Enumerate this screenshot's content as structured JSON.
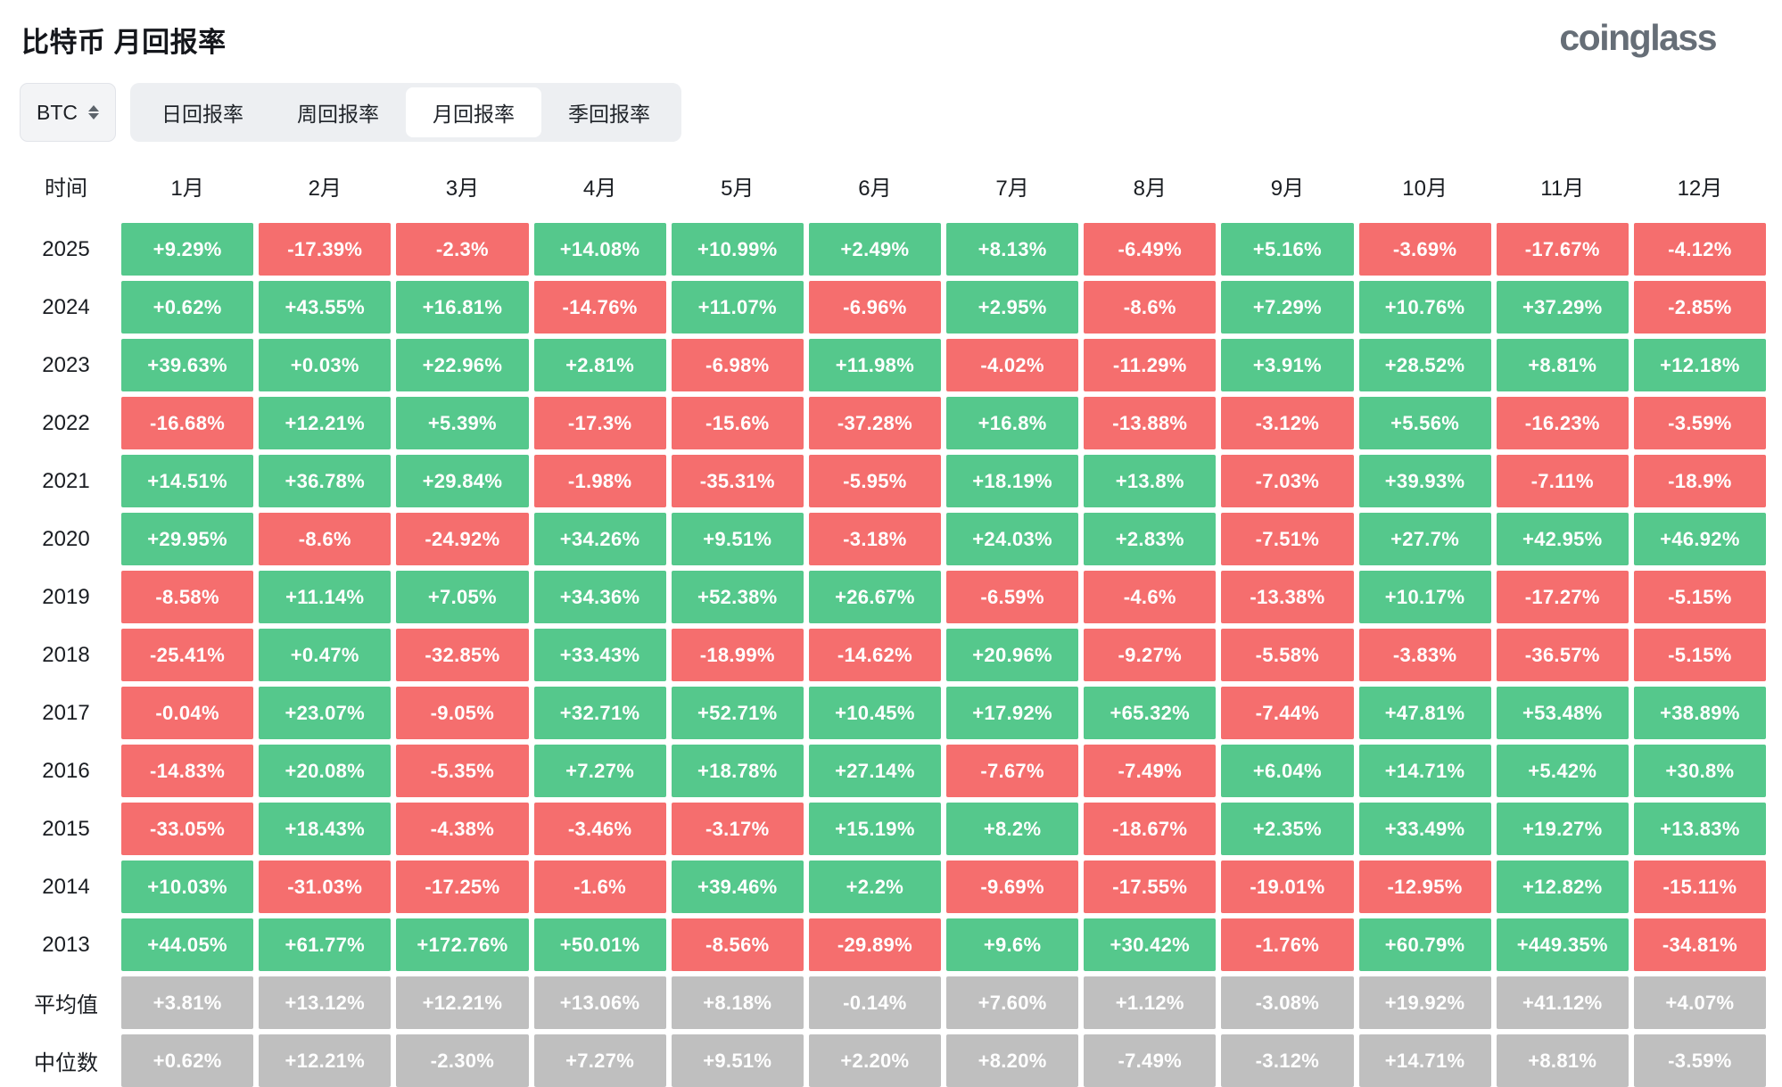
{
  "header": {
    "title": "比特币 月回报率",
    "logo": "coinglass"
  },
  "controls": {
    "symbol_select": {
      "value": "BTC",
      "icon": "sort-updown-icon"
    },
    "tabs": [
      {
        "label": "日回报率",
        "active": false
      },
      {
        "label": "周回报率",
        "active": false
      },
      {
        "label": "月回报率",
        "active": true
      },
      {
        "label": "季回报率",
        "active": false
      }
    ]
  },
  "colors": {
    "positive": "#55C88C",
    "negative": "#F56E6E",
    "neutral": "#BFBFBF"
  },
  "chart_data": {
    "type": "heatmap",
    "title": "比特币 月回报率",
    "columns": [
      "时间",
      "1月",
      "2月",
      "3月",
      "4月",
      "5月",
      "6月",
      "7月",
      "8月",
      "9月",
      "10月",
      "11月",
      "12月"
    ],
    "rows": [
      {
        "label": "2025",
        "type": "year",
        "values": [
          "+9.29%",
          "-17.39%",
          "-2.3%",
          "+14.08%",
          "+10.99%",
          "+2.49%",
          "+8.13%",
          "-6.49%",
          "+5.16%",
          "-3.69%",
          "-17.67%",
          "-4.12%"
        ]
      },
      {
        "label": "2024",
        "type": "year",
        "values": [
          "+0.62%",
          "+43.55%",
          "+16.81%",
          "-14.76%",
          "+11.07%",
          "-6.96%",
          "+2.95%",
          "-8.6%",
          "+7.29%",
          "+10.76%",
          "+37.29%",
          "-2.85%"
        ]
      },
      {
        "label": "2023",
        "type": "year",
        "values": [
          "+39.63%",
          "+0.03%",
          "+22.96%",
          "+2.81%",
          "-6.98%",
          "+11.98%",
          "-4.02%",
          "-11.29%",
          "+3.91%",
          "+28.52%",
          "+8.81%",
          "+12.18%"
        ]
      },
      {
        "label": "2022",
        "type": "year",
        "values": [
          "-16.68%",
          "+12.21%",
          "+5.39%",
          "-17.3%",
          "-15.6%",
          "-37.28%",
          "+16.8%",
          "-13.88%",
          "-3.12%",
          "+5.56%",
          "-16.23%",
          "-3.59%"
        ]
      },
      {
        "label": "2021",
        "type": "year",
        "values": [
          "+14.51%",
          "+36.78%",
          "+29.84%",
          "-1.98%",
          "-35.31%",
          "-5.95%",
          "+18.19%",
          "+13.8%",
          "-7.03%",
          "+39.93%",
          "-7.11%",
          "-18.9%"
        ]
      },
      {
        "label": "2020",
        "type": "year",
        "values": [
          "+29.95%",
          "-8.6%",
          "-24.92%",
          "+34.26%",
          "+9.51%",
          "-3.18%",
          "+24.03%",
          "+2.83%",
          "-7.51%",
          "+27.7%",
          "+42.95%",
          "+46.92%"
        ]
      },
      {
        "label": "2019",
        "type": "year",
        "values": [
          "-8.58%",
          "+11.14%",
          "+7.05%",
          "+34.36%",
          "+52.38%",
          "+26.67%",
          "-6.59%",
          "-4.6%",
          "-13.38%",
          "+10.17%",
          "-17.27%",
          "-5.15%"
        ]
      },
      {
        "label": "2018",
        "type": "year",
        "values": [
          "-25.41%",
          "+0.47%",
          "-32.85%",
          "+33.43%",
          "-18.99%",
          "-14.62%",
          "+20.96%",
          "-9.27%",
          "-5.58%",
          "-3.83%",
          "-36.57%",
          "-5.15%"
        ]
      },
      {
        "label": "2017",
        "type": "year",
        "values": [
          "-0.04%",
          "+23.07%",
          "-9.05%",
          "+32.71%",
          "+52.71%",
          "+10.45%",
          "+17.92%",
          "+65.32%",
          "-7.44%",
          "+47.81%",
          "+53.48%",
          "+38.89%"
        ]
      },
      {
        "label": "2016",
        "type": "year",
        "values": [
          "-14.83%",
          "+20.08%",
          "-5.35%",
          "+7.27%",
          "+18.78%",
          "+27.14%",
          "-7.67%",
          "-7.49%",
          "+6.04%",
          "+14.71%",
          "+5.42%",
          "+30.8%"
        ]
      },
      {
        "label": "2015",
        "type": "year",
        "values": [
          "-33.05%",
          "+18.43%",
          "-4.38%",
          "-3.46%",
          "-3.17%",
          "+15.19%",
          "+8.2%",
          "-18.67%",
          "+2.35%",
          "+33.49%",
          "+19.27%",
          "+13.83%"
        ]
      },
      {
        "label": "2014",
        "type": "year",
        "values": [
          "+10.03%",
          "-31.03%",
          "-17.25%",
          "-1.6%",
          "+39.46%",
          "+2.2%",
          "-9.69%",
          "-17.55%",
          "-19.01%",
          "-12.95%",
          "+12.82%",
          "-15.11%"
        ]
      },
      {
        "label": "2013",
        "type": "year",
        "values": [
          "+44.05%",
          "+61.77%",
          "+172.76%",
          "+50.01%",
          "-8.56%",
          "-29.89%",
          "+9.6%",
          "+30.42%",
          "-1.76%",
          "+60.79%",
          "+449.35%",
          "-34.81%"
        ]
      },
      {
        "label": "平均值",
        "type": "stat",
        "values": [
          "+3.81%",
          "+13.12%",
          "+12.21%",
          "+13.06%",
          "+8.18%",
          "-0.14%",
          "+7.60%",
          "+1.12%",
          "-3.08%",
          "+19.92%",
          "+41.12%",
          "+4.07%"
        ]
      },
      {
        "label": "中位数",
        "type": "stat",
        "values": [
          "+0.62%",
          "+12.21%",
          "-2.30%",
          "+7.27%",
          "+9.51%",
          "+2.20%",
          "+8.20%",
          "-7.49%",
          "-3.12%",
          "+14.71%",
          "+8.81%",
          "-3.59%"
        ]
      }
    ]
  }
}
